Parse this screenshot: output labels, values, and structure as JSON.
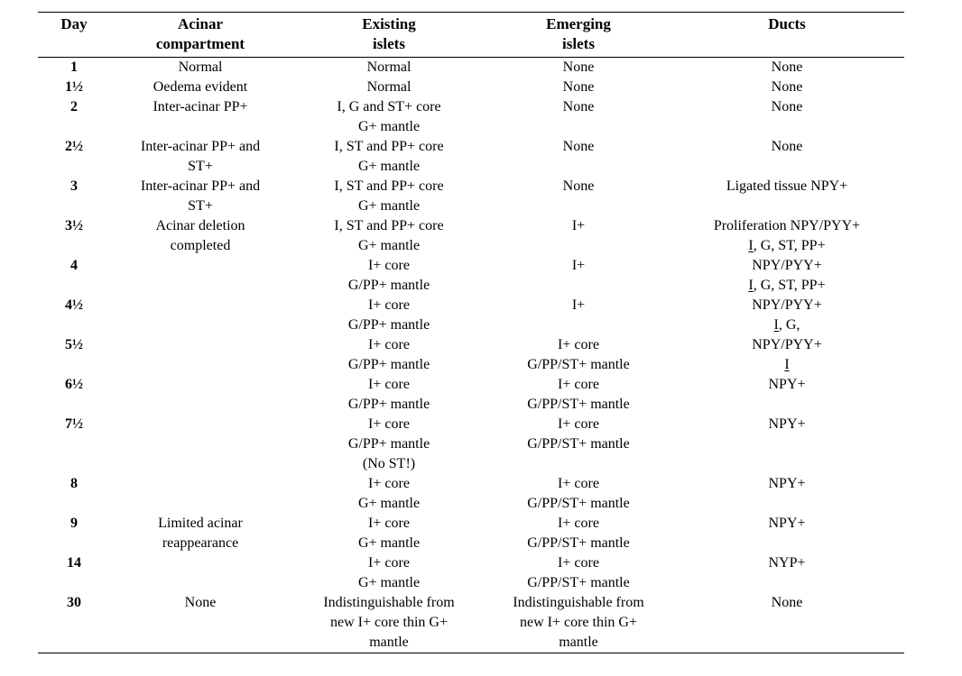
{
  "table": {
    "header": [
      {
        "lines": [
          "Day"
        ]
      },
      {
        "lines": [
          "Acinar",
          "compartment"
        ]
      },
      {
        "lines": [
          "Existing",
          "islets"
        ]
      },
      {
        "lines": [
          "Emerging",
          "islets"
        ]
      },
      {
        "lines": [
          "Ducts"
        ]
      }
    ],
    "rows": [
      {
        "cells": [
          [
            "1"
          ],
          [
            "Normal"
          ],
          [
            "Normal"
          ],
          [
            "None"
          ],
          [
            "None"
          ]
        ]
      },
      {
        "cells": [
          [
            "1½"
          ],
          [
            "Oedema evident"
          ],
          [
            "Normal"
          ],
          [
            "None"
          ],
          [
            "None"
          ]
        ]
      },
      {
        "cells": [
          [
            "2"
          ],
          [
            "Inter-acinar PP+"
          ],
          [
            "I, G and ST+ core",
            "G+ mantle"
          ],
          [
            "None"
          ],
          [
            "None"
          ]
        ]
      },
      {
        "cells": [
          [
            "2½"
          ],
          [
            "Inter-acinar PP+ and",
            "ST+"
          ],
          [
            "I, ST and PP+ core",
            "G+ mantle"
          ],
          [
            "None"
          ],
          [
            "None"
          ]
        ]
      },
      {
        "cells": [
          [
            "3"
          ],
          [
            "Inter-acinar PP+ and",
            "ST+"
          ],
          [
            "I, ST and PP+ core",
            "G+ mantle"
          ],
          [
            "None"
          ],
          [
            "Ligated tissue NPY+"
          ]
        ]
      },
      {
        "cells": [
          [
            "3½"
          ],
          [
            "Acinar deletion",
            "completed"
          ],
          [
            "I, ST and PP+ core",
            "G+ mantle"
          ],
          [
            "I+"
          ],
          [
            "Proliferation NPY/PYY+",
            "[[I]], G, ST, PP+"
          ]
        ]
      },
      {
        "cells": [
          [
            "4"
          ],
          [],
          [
            "I+ core",
            "G/PP+ mantle"
          ],
          [
            "I+"
          ],
          [
            "NPY/PYY+",
            "[[I]], G, ST, PP+"
          ]
        ]
      },
      {
        "cells": [
          [
            "4½"
          ],
          [],
          [
            "I+ core",
            "G/PP+ mantle"
          ],
          [
            "I+"
          ],
          [
            "NPY/PYY+",
            "[[I]], G,"
          ]
        ]
      },
      {
        "cells": [
          [
            "5½"
          ],
          [],
          [
            "I+ core",
            "G/PP+ mantle"
          ],
          [
            "I+ core",
            "G/PP/ST+ mantle"
          ],
          [
            "NPY/PYY+",
            "[[I]]"
          ]
        ]
      },
      {
        "cells": [
          [
            "6½"
          ],
          [],
          [
            "I+ core",
            "G/PP+ mantle"
          ],
          [
            "I+ core",
            "G/PP/ST+ mantle"
          ],
          [
            "NPY+"
          ]
        ]
      },
      {
        "cells": [
          [
            "7½"
          ],
          [],
          [
            "I+ core",
            "G/PP+ mantle",
            "(No ST!)"
          ],
          [
            "I+ core",
            "G/PP/ST+ mantle"
          ],
          [
            "NPY+"
          ]
        ]
      },
      {
        "cells": [
          [
            "8"
          ],
          [],
          [
            "I+ core",
            "G+ mantle"
          ],
          [
            "I+ core",
            "G/PP/ST+ mantle"
          ],
          [
            "NPY+"
          ]
        ]
      },
      {
        "cells": [
          [
            "9"
          ],
          [
            "Limited acinar",
            "reappearance"
          ],
          [
            "I+ core",
            "G+ mantle"
          ],
          [
            "I+ core",
            "G/PP/ST+ mantle"
          ],
          [
            "NPY+"
          ]
        ]
      },
      {
        "cells": [
          [
            "14"
          ],
          [],
          [
            "I+ core",
            "G+ mantle"
          ],
          [
            "I+ core",
            "G/PP/ST+ mantle"
          ],
          [
            "NYP+"
          ]
        ]
      },
      {
        "cells": [
          [
            "30"
          ],
          [
            "None"
          ],
          [
            "Indistinguishable from",
            "new I+ core thin G+",
            "mantle"
          ],
          [
            "Indistinguishable from",
            "new I+ core thin G+",
            "mantle"
          ],
          [
            "None"
          ]
        ]
      }
    ],
    "text_color": "#000000",
    "rule_color": "#000000"
  }
}
